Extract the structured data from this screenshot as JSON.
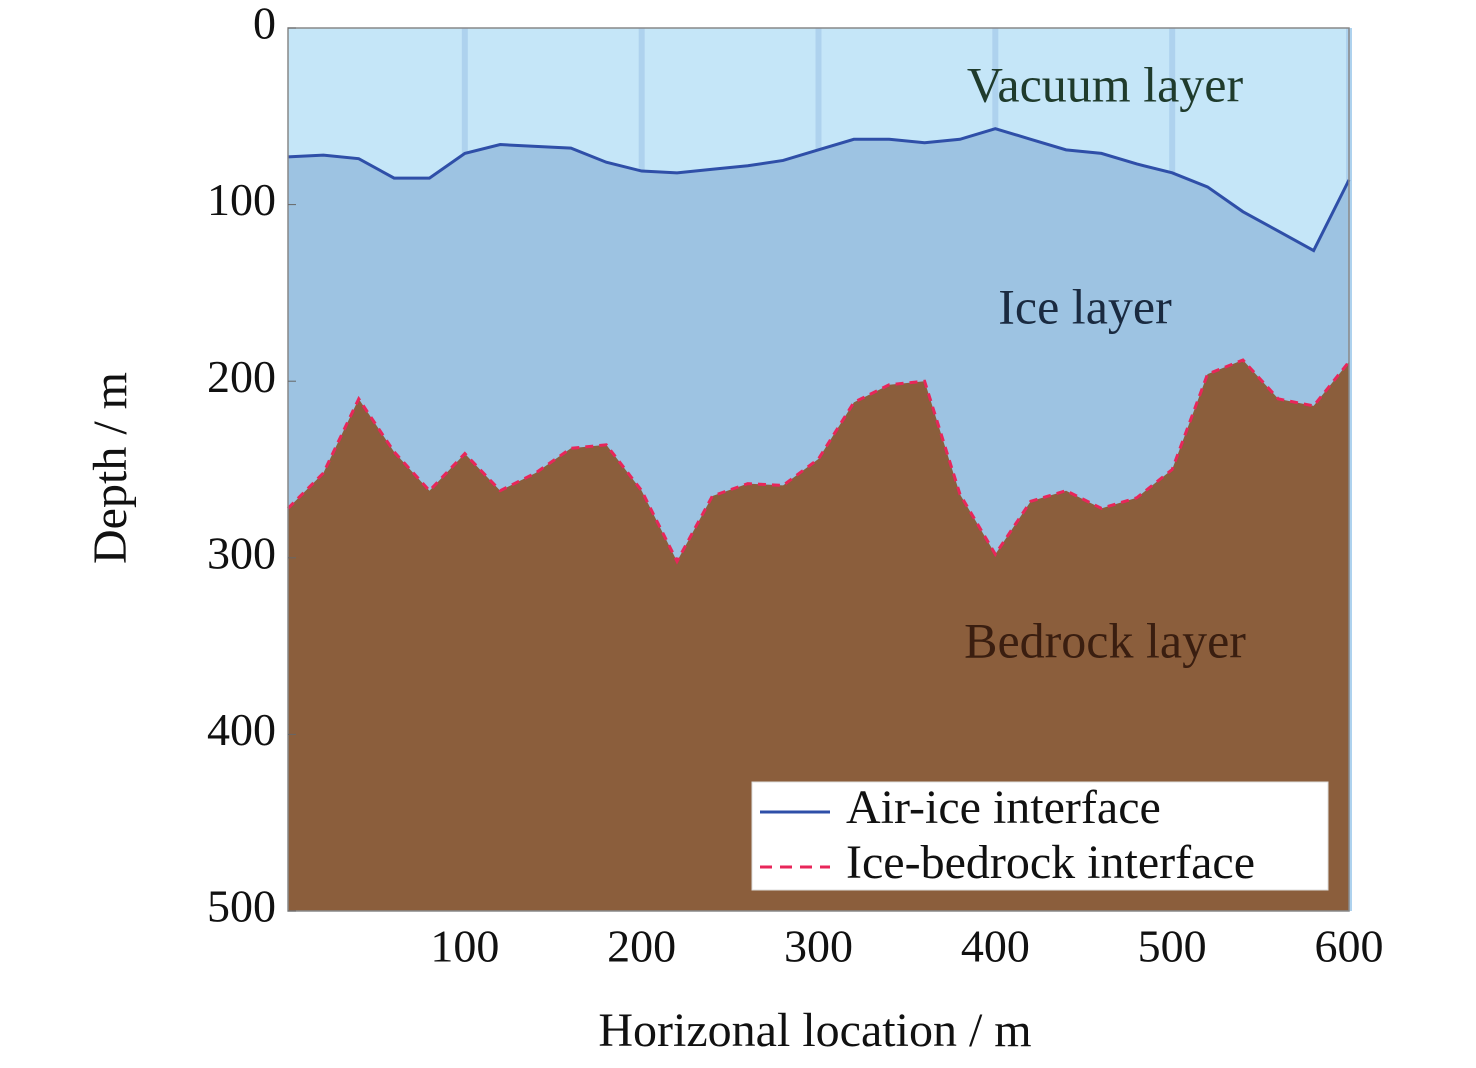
{
  "chart_data": {
    "type": "area",
    "xlabel": "Horizonal location / m",
    "ylabel": "Depth / m",
    "annotations": [
      "Vacuum layer",
      "Ice layer",
      "Bedrock layer"
    ],
    "x": [
      0,
      20,
      40,
      60,
      80,
      100,
      120,
      140,
      160,
      180,
      200,
      220,
      240,
      260,
      280,
      300,
      320,
      340,
      360,
      380,
      400,
      420,
      440,
      460,
      480,
      500,
      520,
      540,
      560,
      580,
      600
    ],
    "series": [
      {
        "name": "Air-ice interface",
        "color": "#2f4fa8",
        "fill": "#9dc3e2",
        "linestyle": "solid",
        "values": [
          73,
          72,
          74,
          85,
          85,
          71,
          66,
          67,
          68,
          76,
          81,
          82,
          80,
          78,
          75,
          69,
          63,
          63,
          65,
          63,
          57,
          63,
          69,
          71,
          77,
          82,
          90,
          104,
          115,
          126,
          86
        ]
      },
      {
        "name": "Ice-bedrock interface",
        "color": "#e8265a",
        "fill": "#8b5e3c",
        "linestyle": "dashed",
        "values": [
          272,
          252,
          210,
          240,
          262,
          241,
          262,
          252,
          238,
          236,
          262,
          302,
          265,
          258,
          259,
          244,
          212,
          202,
          200,
          264,
          298,
          268,
          262,
          272,
          266,
          250,
          196,
          188,
          210,
          214,
          189
        ]
      }
    ],
    "background": "#c5e6f8",
    "xlim": [
      0,
      600
    ],
    "xticks": [
      100,
      200,
      300,
      400,
      500,
      600
    ],
    "ylim": [
      0,
      500
    ],
    "yticks": [
      0,
      100,
      200,
      300,
      400,
      500
    ],
    "y_inverted": true,
    "grid": true,
    "legend": "lower right"
  }
}
